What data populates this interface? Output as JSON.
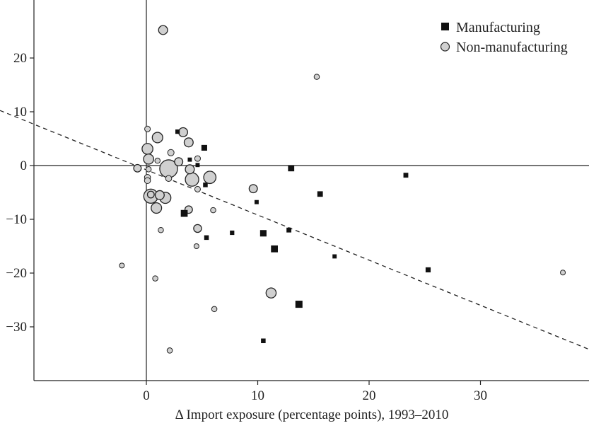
{
  "chart_data": {
    "type": "scatter",
    "title": "",
    "xlabel": "Δ Import exposure (percentage points), 1993–2010",
    "ylabel": "",
    "xlim": [
      -10,
      40
    ],
    "ylim": [
      -40,
      30
    ],
    "x_ticks": [
      0,
      10,
      20,
      30
    ],
    "y_ticks": [
      -30,
      -20,
      -10,
      0,
      10,
      20
    ],
    "x_tick_labels": [
      "0",
      "10",
      "20",
      "30"
    ],
    "y_tick_labels": [
      "−30",
      "−20",
      "−10",
      "0",
      "10",
      "20"
    ],
    "reference_lines": {
      "x": 0,
      "y": 0
    },
    "fit_line": {
      "style": "dashed",
      "intercept": -0.8,
      "slope": -0.84
    },
    "legend": {
      "position": "top-right"
    },
    "series": [
      {
        "name": "Manufacturing",
        "marker": "square",
        "color": "#111111",
        "points": [
          {
            "x": 2.8,
            "y": 6.3,
            "size": 1.0
          },
          {
            "x": 5.2,
            "y": 3.3,
            "size": 1.6
          },
          {
            "x": 3.9,
            "y": 1.1,
            "size": 0.9
          },
          {
            "x": 4.6,
            "y": 0.1,
            "size": 0.9
          },
          {
            "x": 13.0,
            "y": -0.5,
            "size": 1.8
          },
          {
            "x": 23.3,
            "y": -1.8,
            "size": 1.2
          },
          {
            "x": 5.3,
            "y": -3.6,
            "size": 1.1
          },
          {
            "x": 15.6,
            "y": -5.3,
            "size": 1.5
          },
          {
            "x": 9.9,
            "y": -6.8,
            "size": 0.9
          },
          {
            "x": 3.4,
            "y": -8.9,
            "size": 2.1
          },
          {
            "x": 7.7,
            "y": -12.5,
            "size": 1.0
          },
          {
            "x": 10.5,
            "y": -12.6,
            "size": 1.9
          },
          {
            "x": 12.8,
            "y": -12.0,
            "size": 1.2
          },
          {
            "x": 5.4,
            "y": -13.4,
            "size": 1.1
          },
          {
            "x": 11.5,
            "y": -15.5,
            "size": 2.1
          },
          {
            "x": 16.9,
            "y": -16.9,
            "size": 0.9
          },
          {
            "x": 25.3,
            "y": -19.4,
            "size": 1.3
          },
          {
            "x": 13.7,
            "y": -25.8,
            "size": 2.2
          },
          {
            "x": 10.5,
            "y": -32.6,
            "size": 1.1
          }
        ]
      },
      {
        "name": "Non-manufacturing",
        "marker": "circle",
        "color": "#d0d0d0",
        "points": [
          {
            "x": 1.5,
            "y": 25.2,
            "size": 1.6
          },
          {
            "x": 15.3,
            "y": 16.5,
            "size": 0.6
          },
          {
            "x": 0.1,
            "y": 6.8,
            "size": 0.7
          },
          {
            "x": 3.3,
            "y": 6.2,
            "size": 1.6
          },
          {
            "x": 1.0,
            "y": 5.2,
            "size": 2.0
          },
          {
            "x": 3.8,
            "y": 4.3,
            "size": 1.6
          },
          {
            "x": 0.1,
            "y": 3.1,
            "size": 2.1
          },
          {
            "x": 2.2,
            "y": 2.4,
            "size": 0.9
          },
          {
            "x": 4.6,
            "y": 1.3,
            "size": 0.7
          },
          {
            "x": 0.2,
            "y": 1.2,
            "size": 1.9
          },
          {
            "x": 1.0,
            "y": 0.9,
            "size": 0.6
          },
          {
            "x": 2.9,
            "y": 0.7,
            "size": 1.4
          },
          {
            "x": -0.8,
            "y": -0.5,
            "size": 1.2
          },
          {
            "x": 0.2,
            "y": -0.7,
            "size": 0.6
          },
          {
            "x": 2.0,
            "y": -0.6,
            "size": 4.0
          },
          {
            "x": 3.9,
            "y": -0.7,
            "size": 1.6
          },
          {
            "x": 0.1,
            "y": -2.2,
            "size": 0.8
          },
          {
            "x": 5.7,
            "y": -2.2,
            "size": 2.5
          },
          {
            "x": 2.0,
            "y": -2.4,
            "size": 0.8
          },
          {
            "x": 0.1,
            "y": -2.8,
            "size": 0.8
          },
          {
            "x": 4.1,
            "y": -2.6,
            "size": 2.8
          },
          {
            "x": 9.6,
            "y": -4.3,
            "size": 1.4
          },
          {
            "x": 4.6,
            "y": -4.4,
            "size": 0.7
          },
          {
            "x": 0.4,
            "y": -5.7,
            "size": 3.0
          },
          {
            "x": 0.4,
            "y": -5.4,
            "size": 1.0
          },
          {
            "x": 1.2,
            "y": -5.5,
            "size": 1.6
          },
          {
            "x": 1.7,
            "y": -6.0,
            "size": 2.2
          },
          {
            "x": 0.9,
            "y": -7.9,
            "size": 2.0
          },
          {
            "x": 3.8,
            "y": -8.2,
            "size": 1.2
          },
          {
            "x": 6.0,
            "y": -8.3,
            "size": 0.6
          },
          {
            "x": 4.6,
            "y": -11.7,
            "size": 1.3
          },
          {
            "x": 1.3,
            "y": -12.0,
            "size": 0.6
          },
          {
            "x": 4.5,
            "y": -15.0,
            "size": 0.5
          },
          {
            "x": -2.2,
            "y": -18.6,
            "size": 0.5
          },
          {
            "x": 37.4,
            "y": -19.9,
            "size": 0.5
          },
          {
            "x": 0.8,
            "y": -21.0,
            "size": 0.6
          },
          {
            "x": 11.2,
            "y": -23.7,
            "size": 1.9
          },
          {
            "x": 6.1,
            "y": -26.7,
            "size": 0.6
          },
          {
            "x": 2.1,
            "y": -34.4,
            "size": 0.6
          }
        ]
      }
    ]
  }
}
